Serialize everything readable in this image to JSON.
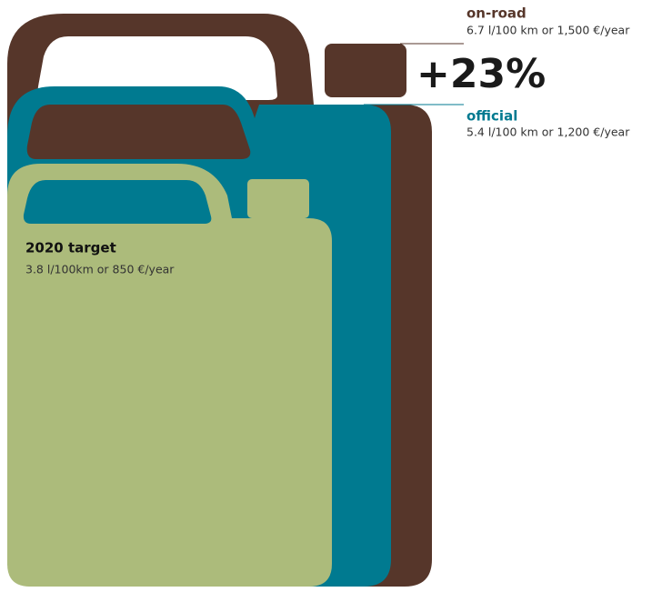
{
  "labels": [
    {
      "title": "on-road",
      "detail": "6.7 l/100 km or 1,500 €/year"
    },
    {
      "title": "official",
      "detail": "5.4 l/100 km or 1,200 €/year"
    },
    {
      "title": "2020 target",
      "detail": "3.8 l/100km or 850 €/year"
    }
  ],
  "difference": "+23%"
}
